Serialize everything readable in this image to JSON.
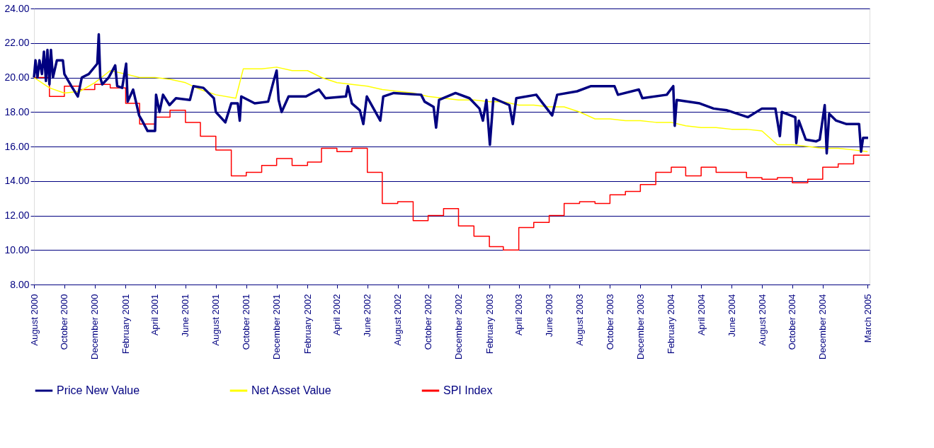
{
  "chart_data": {
    "type": "line",
    "legend": "bottom",
    "grid": "y",
    "ylim": [
      8,
      24
    ],
    "yticks": [
      {
        "value": 8,
        "label": "8.00"
      },
      {
        "value": 10,
        "label": "10.00"
      },
      {
        "value": 12,
        "label": "12.00"
      },
      {
        "value": 14,
        "label": "14.00"
      },
      {
        "value": 16,
        "label": "16.00"
      },
      {
        "value": 18,
        "label": "18.00"
      },
      {
        "value": 20,
        "label": "20.00"
      },
      {
        "value": 22,
        "label": "22.00"
      },
      {
        "value": 24,
        "label": "24.00"
      }
    ],
    "xlim": [
      "2000-08-01",
      "2005-03-05"
    ],
    "xticks": [
      {
        "value": "2000-08-01",
        "label": "August 2000"
      },
      {
        "value": "2000-10-01",
        "label": "October 2000"
      },
      {
        "value": "2000-12-01",
        "label": "December 2000"
      },
      {
        "value": "2001-02-01",
        "label": "February 2001"
      },
      {
        "value": "2001-04-01",
        "label": "April 2001"
      },
      {
        "value": "2001-06-01",
        "label": "June 2001"
      },
      {
        "value": "2001-08-01",
        "label": "August 2001"
      },
      {
        "value": "2001-10-01",
        "label": "October 2001"
      },
      {
        "value": "2001-12-01",
        "label": "December 2001"
      },
      {
        "value": "2002-02-01",
        "label": "February 2002"
      },
      {
        "value": "2002-04-01",
        "label": "April 2002"
      },
      {
        "value": "2002-06-01",
        "label": "June 2002"
      },
      {
        "value": "2002-08-01",
        "label": "August 2002"
      },
      {
        "value": "2002-10-01",
        "label": "October 2002"
      },
      {
        "value": "2002-12-01",
        "label": "December 2002"
      },
      {
        "value": "2003-02-01",
        "label": "February 2003"
      },
      {
        "value": "2003-04-01",
        "label": "April 2003"
      },
      {
        "value": "2003-06-01",
        "label": "June 2003"
      },
      {
        "value": "2003-08-01",
        "label": "August 2003"
      },
      {
        "value": "2003-10-01",
        "label": "October 2003"
      },
      {
        "value": "2003-12-01",
        "label": "December 2003"
      },
      {
        "value": "2004-02-01",
        "label": "February 2004"
      },
      {
        "value": "2004-04-01",
        "label": "April 2004"
      },
      {
        "value": "2004-06-01",
        "label": "June 2004"
      },
      {
        "value": "2004-08-01",
        "label": "August 2004"
      },
      {
        "value": "2004-10-01",
        "label": "October 2004"
      },
      {
        "value": "2004-12-01",
        "label": "December 2004"
      },
      {
        "value": "2005-03-01",
        "label": "March 2005"
      }
    ],
    "series": [
      {
        "name": "Price New Value",
        "color": "#000080",
        "x": [
          "2000-08-01",
          "2000-08-04",
          "2000-08-08",
          "2000-08-12",
          "2000-08-17",
          "2000-08-21",
          "2000-08-25",
          "2000-08-28",
          "2000-09-01",
          "2000-09-04",
          "2000-09-08",
          "2000-09-16",
          "2000-09-28",
          "2000-10-01",
          "2000-10-15",
          "2000-10-28",
          "2000-11-05",
          "2000-11-19",
          "2000-12-06",
          "2000-12-09",
          "2000-12-12",
          "2000-12-16",
          "2000-12-29",
          "2001-01-11",
          "2001-01-15",
          "2001-01-25",
          "2001-02-02",
          "2001-02-05",
          "2001-02-16",
          "2001-02-28",
          "2001-03-06",
          "2001-03-17",
          "2001-04-01",
          "2001-04-03",
          "2001-04-10",
          "2001-04-17",
          "2001-04-30",
          "2001-05-13",
          "2001-06-10",
          "2001-06-17",
          "2001-07-07",
          "2001-07-28",
          "2001-08-01",
          "2001-08-20",
          "2001-09-01",
          "2001-09-14",
          "2001-09-18",
          "2001-09-21",
          "2001-10-18",
          "2001-11-14",
          "2001-11-25",
          "2001-12-01",
          "2001-12-05",
          "2001-12-11",
          "2001-12-25",
          "2002-01-29",
          "2002-02-24",
          "2002-03-09",
          "2002-04-19",
          "2002-04-23",
          "2002-05-01",
          "2002-05-17",
          "2002-05-24",
          "2002-05-31",
          "2002-06-27",
          "2002-07-03",
          "2002-07-24",
          "2002-09-17",
          "2002-09-24",
          "2002-10-12",
          "2002-10-17",
          "2002-10-23",
          "2002-11-25",
          "2002-12-23",
          "2003-01-12",
          "2003-01-19",
          "2003-01-26",
          "2003-02-02",
          "2003-02-09",
          "2003-03-13",
          "2003-03-20",
          "2003-03-27",
          "2003-05-06",
          "2003-06-07",
          "2003-06-17",
          "2003-07-27",
          "2003-08-24",
          "2003-10-10",
          "2003-10-17",
          "2003-11-28",
          "2003-12-05",
          "2004-01-23",
          "2004-02-05",
          "2004-02-08",
          "2004-02-12",
          "2004-03-29",
          "2004-04-26",
          "2004-05-23",
          "2004-07-04",
          "2004-08-01",
          "2004-08-28",
          "2004-09-06",
          "2004-09-10",
          "2004-10-07",
          "2004-10-09",
          "2004-10-14",
          "2004-10-28",
          "2004-11-18",
          "2004-11-25",
          "2004-12-05",
          "2004-12-09",
          "2004-12-14",
          "2004-12-28",
          "2005-01-18",
          "2005-02-12",
          "2005-02-16",
          "2005-02-20",
          "2005-03-02"
        ],
        "values": [
          20.0,
          21.0,
          20.0,
          21.0,
          20.2,
          21.5,
          19.8,
          21.6,
          19.6,
          21.6,
          20.0,
          21.0,
          21.0,
          20.2,
          19.5,
          18.9,
          20.0,
          20.2,
          20.8,
          22.5,
          20.0,
          19.6,
          20.0,
          20.7,
          19.5,
          19.4,
          20.8,
          18.6,
          19.3,
          17.8,
          17.5,
          16.9,
          16.9,
          19.0,
          18.0,
          19.0,
          18.4,
          18.8,
          18.7,
          19.5,
          19.4,
          18.8,
          18.0,
          17.4,
          18.5,
          18.5,
          17.5,
          18.9,
          18.5,
          18.6,
          19.8,
          20.4,
          18.7,
          18.0,
          18.9,
          18.9,
          19.3,
          18.8,
          18.9,
          19.5,
          18.5,
          18.1,
          17.3,
          18.9,
          17.5,
          18.9,
          19.1,
          19.0,
          18.6,
          18.3,
          17.1,
          18.7,
          19.1,
          18.8,
          18.2,
          17.5,
          18.7,
          16.1,
          18.8,
          18.4,
          17.3,
          18.8,
          19.0,
          17.8,
          19.0,
          19.2,
          19.5,
          19.5,
          19.0,
          19.3,
          18.8,
          19.0,
          19.5,
          17.2,
          18.7,
          18.5,
          18.2,
          18.1,
          17.7,
          18.2,
          18.2,
          16.6,
          18.0,
          17.7,
          16.2,
          17.5,
          16.4,
          16.3,
          16.4,
          18.4,
          15.6,
          17.9,
          17.5,
          17.3,
          17.3,
          15.7,
          16.5,
          16.5
        ]
      },
      {
        "name": "Net Asset Value",
        "color": "#ffff00",
        "x": [
          "2000-08-01",
          "2000-09-01",
          "2000-10-01",
          "2000-11-01",
          "2000-12-01",
          "2001-01-01",
          "2001-02-01",
          "2001-03-01",
          "2001-04-01",
          "2001-05-01",
          "2001-06-01",
          "2001-07-01",
          "2001-08-01",
          "2001-09-10",
          "2001-09-25",
          "2001-10-01",
          "2001-11-01",
          "2001-12-01",
          "2002-01-01",
          "2002-02-01",
          "2002-03-01",
          "2002-04-01",
          "2002-05-01",
          "2002-06-01",
          "2002-07-01",
          "2002-08-01",
          "2002-09-01",
          "2002-10-01",
          "2002-11-01",
          "2002-12-01",
          "2003-01-01",
          "2003-02-01",
          "2003-03-01",
          "2003-04-01",
          "2003-05-01",
          "2003-06-01",
          "2003-07-01",
          "2003-08-01",
          "2003-09-01",
          "2003-10-01",
          "2003-11-01",
          "2003-12-01",
          "2004-01-01",
          "2004-02-01",
          "2004-03-01",
          "2004-04-01",
          "2004-05-01",
          "2004-06-01",
          "2004-07-01",
          "2004-08-01",
          "2004-09-01",
          "2004-10-01",
          "2004-11-01",
          "2004-12-01",
          "2005-01-01",
          "2005-02-01",
          "2005-03-01"
        ],
        "values": [
          20.0,
          19.4,
          19.1,
          19.2,
          19.7,
          20.4,
          20.2,
          20.0,
          20.0,
          19.9,
          19.7,
          19.3,
          19.0,
          18.8,
          20.5,
          20.5,
          20.5,
          20.6,
          20.4,
          20.4,
          20.0,
          19.7,
          19.6,
          19.5,
          19.3,
          19.2,
          19.1,
          18.9,
          18.8,
          18.7,
          18.7,
          18.6,
          18.6,
          18.4,
          18.4,
          18.3,
          18.3,
          18.0,
          17.6,
          17.6,
          17.5,
          17.5,
          17.4,
          17.4,
          17.2,
          17.1,
          17.1,
          17.0,
          17.0,
          16.9,
          16.1,
          16.1,
          16.0,
          15.9,
          15.9,
          15.8,
          15.7
        ]
      },
      {
        "name": "SPI Index",
        "color": "#ff0000",
        "type": "step",
        "x": [
          "2000-08-01",
          "2000-09-01",
          "2000-10-01",
          "2000-11-01",
          "2000-12-01",
          "2001-01-01",
          "2001-02-01",
          "2001-03-01",
          "2001-04-01",
          "2001-05-01",
          "2001-06-01",
          "2001-07-01",
          "2001-08-01",
          "2001-09-01",
          "2001-10-01",
          "2001-11-01",
          "2001-12-01",
          "2002-01-01",
          "2002-02-01",
          "2002-03-01",
          "2002-04-01",
          "2002-05-01",
          "2002-06-01",
          "2002-07-01",
          "2002-08-01",
          "2002-09-01",
          "2002-10-01",
          "2002-11-01",
          "2002-12-01",
          "2003-01-01",
          "2003-02-01",
          "2003-03-01",
          "2003-04-01",
          "2003-05-01",
          "2003-06-01",
          "2003-07-01",
          "2003-08-01",
          "2003-09-01",
          "2003-10-01",
          "2003-11-01",
          "2003-12-01",
          "2004-01-01",
          "2004-02-01",
          "2004-03-01",
          "2004-04-01",
          "2004-05-01",
          "2004-06-01",
          "2004-07-01",
          "2004-08-01",
          "2004-09-01",
          "2004-10-01",
          "2004-11-01",
          "2004-12-01",
          "2005-01-01",
          "2005-02-01",
          "2005-03-05"
        ],
        "values": [
          20.0,
          18.9,
          19.5,
          19.3,
          19.6,
          19.4,
          18.5,
          17.3,
          17.7,
          18.1,
          17.4,
          16.6,
          15.8,
          14.3,
          14.5,
          14.9,
          15.3,
          14.9,
          15.1,
          15.9,
          15.7,
          15.9,
          14.5,
          12.7,
          12.8,
          11.7,
          12.0,
          12.4,
          11.4,
          10.8,
          10.2,
          10.0,
          11.3,
          11.6,
          12.0,
          12.7,
          12.8,
          12.7,
          13.2,
          13.4,
          13.8,
          14.5,
          14.8,
          14.3,
          14.8,
          14.5,
          14.5,
          14.2,
          14.1,
          14.2,
          13.9,
          14.1,
          14.8,
          15.0,
          15.5,
          15.5
        ]
      }
    ]
  }
}
